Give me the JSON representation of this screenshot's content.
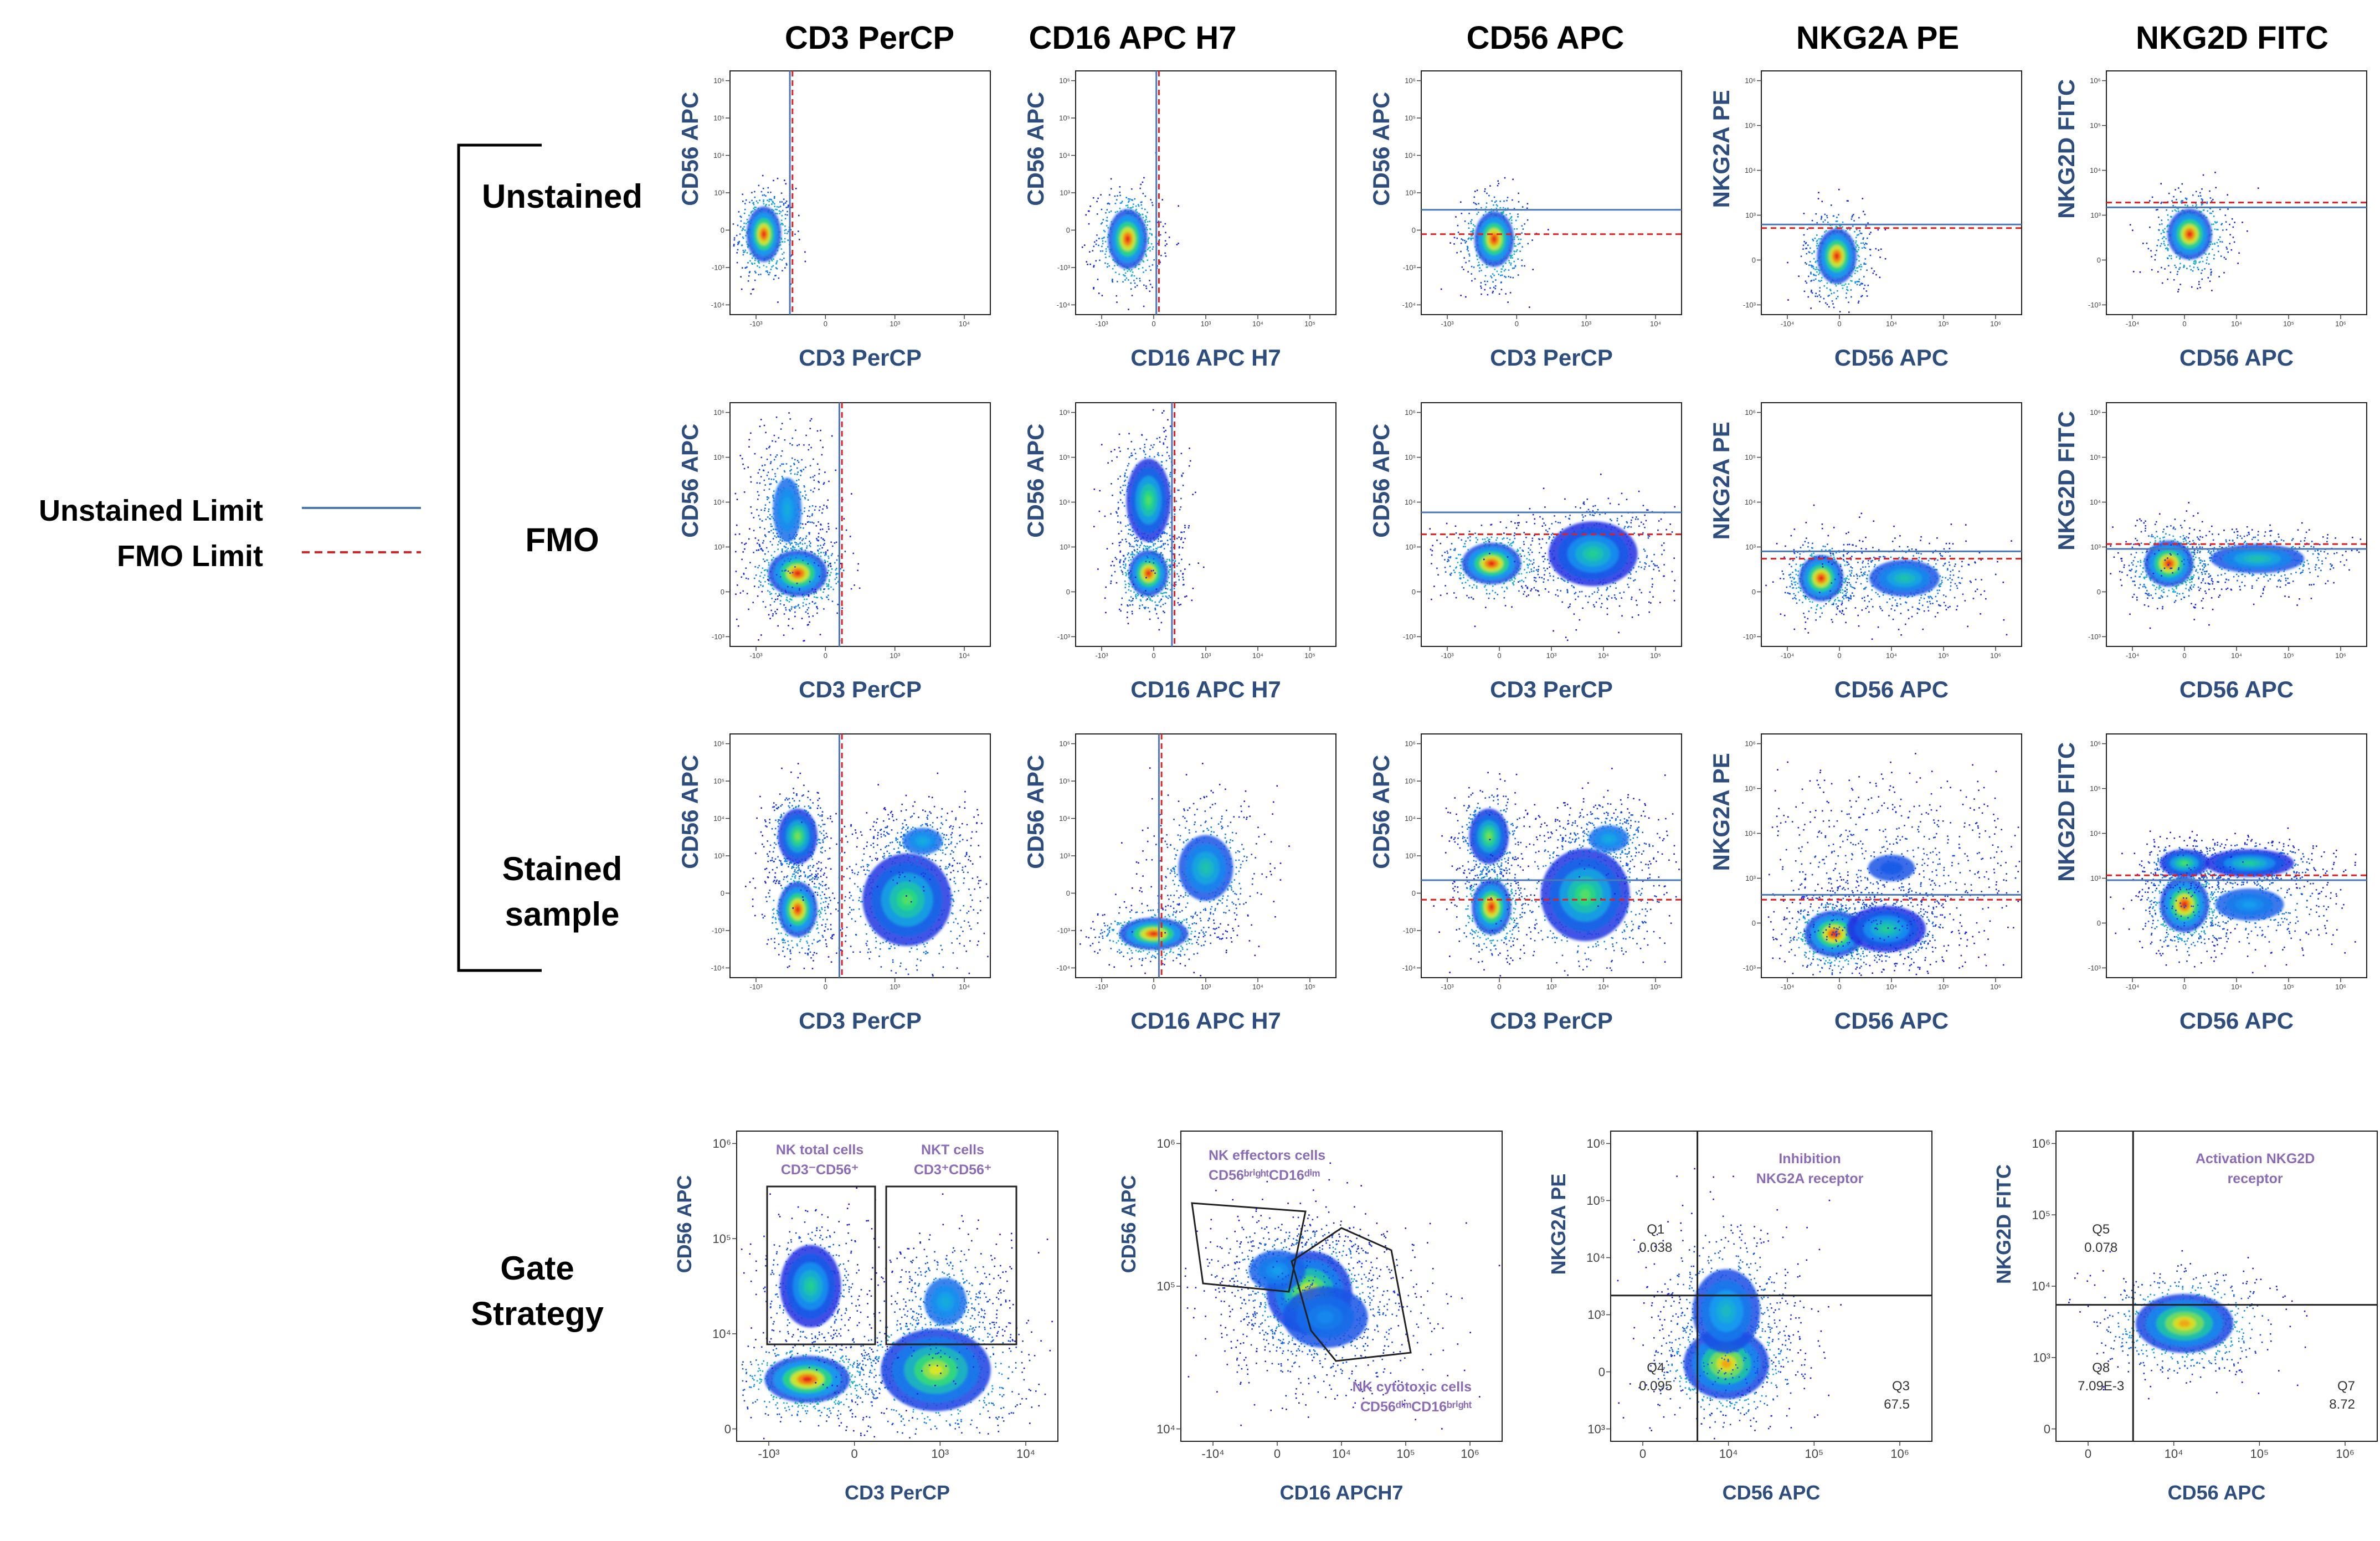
{
  "column_titles": [
    "CD3 PerCP",
    "CD16 APC H7",
    "CD56 APC",
    "NKG2A PE",
    "NKG2D FITC"
  ],
  "row_labels": [
    [
      "Unstained"
    ],
    [
      "FMO"
    ],
    [
      "Stained",
      "sample"
    ]
  ],
  "gate_label": [
    "Gate",
    "Strategy"
  ],
  "legend": {
    "unstained_label": "Unstained Limit",
    "fmo_label": "FMO Limit",
    "unstained_color": "#4a78b8",
    "fmo_color": "#e02020"
  },
  "colors": {
    "axis_label": "#2e4d7f",
    "gate_text": "#8a6bb5"
  },
  "chart_data": {
    "type": "scatter",
    "grid": [
      [
        {
          "xlabel": "CD3 PerCP",
          "ylabel": "CD56 APC",
          "xticks": [
            "-10³",
            "0",
            "10³",
            "10⁴"
          ],
          "yticks": [
            "10⁶",
            "10⁵",
            "10⁴",
            "10³",
            "0",
            "-10³",
            "-10⁴"
          ],
          "vline": {
            "unstained": 0.23,
            "fmo": 0.24
          },
          "hline": null,
          "clusters": [
            {
              "x": 0.13,
              "y": 0.33,
              "sx": 0.035,
              "sy": 0.06,
              "n": 500,
              "d": 1
            }
          ]
        },
        {
          "xlabel": "CD16 APC H7",
          "ylabel": "CD56 APC",
          "xticks": [
            "-10³",
            "0",
            "10³",
            "10⁴",
            "10⁵"
          ],
          "yticks": [
            "10⁶",
            "10⁵",
            "10⁴",
            "10³",
            "0",
            "-10³",
            "-10⁴"
          ],
          "vline": {
            "unstained": 0.31,
            "fmo": 0.32
          },
          "hline": null,
          "clusters": [
            {
              "x": 0.2,
              "y": 0.31,
              "sx": 0.04,
              "sy": 0.065,
              "n": 500,
              "d": 1
            }
          ]
        },
        {
          "xlabel": "CD3 PerCP",
          "ylabel": "CD56 APC",
          "xticks": [
            "-10³",
            "0",
            "10³",
            "10⁴"
          ],
          "yticks": [
            "10⁶",
            "10⁵",
            "10⁴",
            "10³",
            "0",
            "-10³",
            "-10⁴"
          ],
          "vline": null,
          "hline": {
            "unstained": 0.43,
            "fmo": 0.33
          },
          "clusters": [
            {
              "x": 0.28,
              "y": 0.31,
              "sx": 0.04,
              "sy": 0.06,
              "n": 500,
              "d": 1
            }
          ]
        },
        {
          "xlabel": "CD56 APC",
          "ylabel": "NKG2A PE",
          "xticks": [
            "-10⁴",
            "0",
            "10⁴",
            "10⁵",
            "10⁶"
          ],
          "yticks": [
            "10⁶",
            "10⁵",
            "10⁴",
            "10³",
            "0",
            "-10³"
          ],
          "vline": null,
          "hline": {
            "unstained": 0.37,
            "fmo": 0.355
          },
          "clusters": [
            {
              "x": 0.29,
              "y": 0.24,
              "sx": 0.04,
              "sy": 0.06,
              "n": 550,
              "d": 1
            }
          ]
        },
        {
          "xlabel": "CD56 APC",
          "ylabel": "NKG2D FITC",
          "xticks": [
            "-10⁴",
            "0",
            "10⁴",
            "10⁵",
            "10⁶"
          ],
          "yticks": [
            "10⁶",
            "10⁵",
            "10⁴",
            "10³",
            "0",
            "-10³"
          ],
          "vline": null,
          "hline": {
            "unstained": 0.44,
            "fmo": 0.46
          },
          "clusters": [
            {
              "x": 0.32,
              "y": 0.33,
              "sx": 0.045,
              "sy": 0.055,
              "n": 550,
              "d": 1
            }
          ]
        }
      ],
      [
        {
          "xlabel": "CD3 PerCP",
          "ylabel": "CD56 APC",
          "xticks": [
            "-10³",
            "0",
            "10³",
            "10⁴"
          ],
          "yticks": [
            "10⁶",
            "10⁵",
            "10⁴",
            "10³",
            "0",
            "-10³"
          ],
          "vline": {
            "unstained": 0.42,
            "fmo": 0.43
          },
          "hline": null,
          "clusters": [
            {
              "x": 0.26,
              "y": 0.3,
              "sx": 0.06,
              "sy": 0.05,
              "n": 600,
              "d": 1
            },
            {
              "x": 0.22,
              "y": 0.56,
              "sx": 0.05,
              "sy": 0.12,
              "n": 500,
              "d": 0.35
            }
          ]
        },
        {
          "xlabel": "CD16 APC H7",
          "ylabel": "CD56 APC",
          "xticks": [
            "-10³",
            "0",
            "10³",
            "10⁴",
            "10⁵"
          ],
          "yticks": [
            "10⁶",
            "10⁵",
            "10⁴",
            "10³",
            "0",
            "-10³"
          ],
          "vline": {
            "unstained": 0.37,
            "fmo": 0.38
          },
          "hline": null,
          "clusters": [
            {
              "x": 0.28,
              "y": 0.3,
              "sx": 0.04,
              "sy": 0.05,
              "n": 500,
              "d": 1
            },
            {
              "x": 0.28,
              "y": 0.6,
              "sx": 0.045,
              "sy": 0.09,
              "n": 500,
              "d": 0.6
            }
          ]
        },
        {
          "xlabel": "CD3 PerCP",
          "ylabel": "CD56 APC",
          "xticks": [
            "-10³",
            "0",
            "10³",
            "10⁴",
            "10⁵"
          ],
          "yticks": [
            "10⁶",
            "10⁵",
            "10⁴",
            "10³",
            "0",
            "-10³"
          ],
          "vline": null,
          "hline": {
            "unstained": 0.55,
            "fmo": 0.46
          },
          "clusters": [
            {
              "x": 0.27,
              "y": 0.34,
              "sx": 0.06,
              "sy": 0.045,
              "n": 500,
              "d": 1
            },
            {
              "x": 0.66,
              "y": 0.38,
              "sx": 0.09,
              "sy": 0.07,
              "n": 600,
              "d": 0.5
            }
          ]
        },
        {
          "xlabel": "CD56 APC",
          "ylabel": "NKG2A PE",
          "xticks": [
            "-10⁴",
            "0",
            "10⁴",
            "10⁵",
            "10⁶"
          ],
          "yticks": [
            "10⁶",
            "10⁵",
            "10⁴",
            "10³",
            "0",
            "-10³"
          ],
          "vline": null,
          "hline": {
            "unstained": 0.39,
            "fmo": 0.36
          },
          "clusters": [
            {
              "x": 0.23,
              "y": 0.28,
              "sx": 0.045,
              "sy": 0.05,
              "n": 500,
              "d": 1
            },
            {
              "x": 0.55,
              "y": 0.28,
              "sx": 0.09,
              "sy": 0.05,
              "n": 500,
              "d": 0.45
            }
          ]
        },
        {
          "xlabel": "CD56 APC",
          "ylabel": "NKG2D FITC",
          "xticks": [
            "-10⁴",
            "0",
            "10⁴",
            "10⁵",
            "10⁶"
          ],
          "yticks": [
            "10⁶",
            "10⁵",
            "10⁴",
            "10³",
            "0",
            "-10³"
          ],
          "vline": null,
          "hline": {
            "unstained": 0.4,
            "fmo": 0.42
          },
          "clusters": [
            {
              "x": 0.24,
              "y": 0.34,
              "sx": 0.05,
              "sy": 0.05,
              "n": 600,
              "d": 1
            },
            {
              "x": 0.58,
              "y": 0.36,
              "sx": 0.12,
              "sy": 0.04,
              "n": 500,
              "d": 0.45
            }
          ]
        }
      ],
      [
        {
          "xlabel": "CD3 PerCP",
          "ylabel": "CD56 APC",
          "xticks": [
            "-10³",
            "0",
            "10³",
            "10⁴"
          ],
          "yticks": [
            "10⁶",
            "10⁵",
            "10⁴",
            "10³",
            "0",
            "-10³",
            "-10⁴"
          ],
          "vline": {
            "unstained": 0.42,
            "fmo": 0.43
          },
          "hline": null,
          "clusters": [
            {
              "x": 0.26,
              "y": 0.28,
              "sx": 0.04,
              "sy": 0.06,
              "n": 500,
              "d": 1
            },
            {
              "x": 0.26,
              "y": 0.58,
              "sx": 0.04,
              "sy": 0.06,
              "n": 400,
              "d": 0.65
            },
            {
              "x": 0.68,
              "y": 0.32,
              "sx": 0.09,
              "sy": 0.1,
              "n": 700,
              "d": 0.6
            },
            {
              "x": 0.74,
              "y": 0.56,
              "sx": 0.07,
              "sy": 0.05,
              "n": 300,
              "d": 0.35
            }
          ]
        },
        {
          "xlabel": "CD16 APC H7",
          "ylabel": "CD56 APC",
          "xticks": [
            "-10³",
            "0",
            "10³",
            "10⁴",
            "10⁵"
          ],
          "yticks": [
            "10⁶",
            "10⁵",
            "10⁴",
            "10³",
            "0",
            "-10³",
            "-10⁴"
          ],
          "vline": {
            "unstained": 0.32,
            "fmo": 0.33
          },
          "hline": null,
          "clusters": [
            {
              "x": 0.3,
              "y": 0.18,
              "sx": 0.07,
              "sy": 0.035,
              "n": 500,
              "d": 1
            },
            {
              "x": 0.5,
              "y": 0.45,
              "sx": 0.07,
              "sy": 0.09,
              "n": 450,
              "d": 0.45
            }
          ]
        },
        {
          "xlabel": "CD3 PerCP",
          "ylabel": "CD56 APC",
          "xticks": [
            "-10³",
            "0",
            "10³",
            "10⁴",
            "10⁵"
          ],
          "yticks": [
            "10⁶",
            "10⁵",
            "10⁴",
            "10³",
            "0",
            "-10³",
            "-10⁴"
          ],
          "vline": null,
          "hline": {
            "unstained": 0.4,
            "fmo": 0.32
          },
          "clusters": [
            {
              "x": 0.27,
              "y": 0.29,
              "sx": 0.04,
              "sy": 0.06,
              "n": 500,
              "d": 1
            },
            {
              "x": 0.26,
              "y": 0.58,
              "sx": 0.04,
              "sy": 0.06,
              "n": 400,
              "d": 0.65
            },
            {
              "x": 0.63,
              "y": 0.34,
              "sx": 0.09,
              "sy": 0.1,
              "n": 700,
              "d": 0.6
            },
            {
              "x": 0.72,
              "y": 0.57,
              "sx": 0.07,
              "sy": 0.05,
              "n": 300,
              "d": 0.35
            }
          ]
        },
        {
          "xlabel": "CD56 APC",
          "ylabel": "NKG2A PE",
          "xticks": [
            "-10⁴",
            "0",
            "10⁴",
            "10⁵",
            "10⁶"
          ],
          "yticks": [
            "10⁶",
            "10⁵",
            "10⁴",
            "10³",
            "0",
            "-10³"
          ],
          "vline": null,
          "hline": {
            "unstained": 0.34,
            "fmo": 0.32
          },
          "clusters": [
            {
              "x": 0.28,
              "y": 0.18,
              "sx": 0.06,
              "sy": 0.05,
              "n": 600,
              "d": 1
            },
            {
              "x": 0.48,
              "y": 0.2,
              "sx": 0.08,
              "sy": 0.05,
              "n": 500,
              "d": 0.5
            },
            {
              "x": 0.5,
              "y": 0.45,
              "sx": 0.2,
              "sy": 0.12,
              "n": 800,
              "d": 0.15
            }
          ]
        },
        {
          "xlabel": "CD56 APC",
          "ylabel": "NKG2D FITC",
          "xticks": [
            "-10⁴",
            "0",
            "10⁴",
            "10⁵",
            "10⁶"
          ],
          "yticks": [
            "10⁶",
            "10⁵",
            "10⁴",
            "10³",
            "0",
            "-10³"
          ],
          "vline": null,
          "hline": {
            "unstained": 0.4,
            "fmo": 0.42
          },
          "clusters": [
            {
              "x": 0.3,
              "y": 0.3,
              "sx": 0.05,
              "sy": 0.06,
              "n": 600,
              "d": 1
            },
            {
              "x": 0.3,
              "y": 0.47,
              "sx": 0.05,
              "sy": 0.03,
              "n": 300,
              "d": 0.6
            },
            {
              "x": 0.55,
              "y": 0.47,
              "sx": 0.09,
              "sy": 0.03,
              "n": 400,
              "d": 0.5
            },
            {
              "x": 0.55,
              "y": 0.3,
              "sx": 0.12,
              "sy": 0.06,
              "n": 400,
              "d": 0.3
            }
          ]
        }
      ]
    ],
    "gate_strategy": [
      {
        "xlabel": "CD3 PerCP",
        "ylabel": "CD56 APC",
        "xticks": [
          "-10³",
          "0",
          "10³",
          "10⁴"
        ],
        "yticks": [
          "10⁶",
          "10⁵",
          "10⁴",
          "0"
        ],
        "gates": [
          {
            "name": "NK total cells",
            "sub": "CD3⁻CD56⁺"
          },
          {
            "name": "NKT cells",
            "sub": "CD3⁺CD56⁺"
          }
        ],
        "clusters": [
          {
            "x": 0.22,
            "y": 0.2,
            "sx": 0.07,
            "sy": 0.04,
            "n": 700,
            "d": 1
          },
          {
            "x": 0.23,
            "y": 0.5,
            "sx": 0.05,
            "sy": 0.07,
            "n": 500,
            "d": 0.5
          },
          {
            "x": 0.62,
            "y": 0.23,
            "sx": 0.09,
            "sy": 0.07,
            "n": 800,
            "d": 0.75
          },
          {
            "x": 0.65,
            "y": 0.45,
            "sx": 0.06,
            "sy": 0.07,
            "n": 400,
            "d": 0.35
          }
        ]
      },
      {
        "xlabel": "CD16 APCH7",
        "ylabel": "CD56 APC",
        "xticks": [
          "-10⁴",
          "0",
          "10⁴",
          "10⁵",
          "10⁶"
        ],
        "yticks": [
          "10⁶",
          "10⁵",
          "10⁴"
        ],
        "gates": [
          {
            "name": "NK effectors cells",
            "sub": "CD56ᵇʳⁱᵍʰᵗCD16ᵈⁱᵐ"
          },
          {
            "name": "NK cytotoxic cells",
            "sub": "CD56ᵈⁱᵐCD16ᵇʳⁱᵍʰᵗ"
          }
        ],
        "clusters": [
          {
            "x": 0.4,
            "y": 0.48,
            "sx": 0.07,
            "sy": 0.07,
            "n": 800,
            "d": 0.8
          },
          {
            "x": 0.3,
            "y": 0.55,
            "sx": 0.08,
            "sy": 0.06,
            "n": 300,
            "d": 0.3
          },
          {
            "x": 0.45,
            "y": 0.4,
            "sx": 0.12,
            "sy": 0.09,
            "n": 500,
            "d": 0.25
          }
        ]
      },
      {
        "xlabel": "CD56 APC",
        "ylabel": "NKG2A PE",
        "xticks": [
          "0",
          "10⁴",
          "10⁵",
          "10⁶"
        ],
        "yticks": [
          "10⁶",
          "10⁵",
          "10⁴",
          "10³",
          "0",
          "10³"
        ],
        "quadrants": [
          {
            "id": "Q1",
            "value": "0.038"
          },
          {
            "id": "Q4",
            "value": "0.095"
          },
          {
            "id": "Q3",
            "value": "67.5"
          }
        ],
        "title": [
          "Inhibition",
          "NKG2A receptor"
        ],
        "clusters": [
          {
            "x": 0.36,
            "y": 0.25,
            "sx": 0.07,
            "sy": 0.06,
            "n": 700,
            "d": 0.85
          },
          {
            "x": 0.36,
            "y": 0.42,
            "sx": 0.07,
            "sy": 0.09,
            "n": 600,
            "d": 0.4
          }
        ]
      },
      {
        "xlabel": "CD56 APC",
        "ylabel": "NKG2D FITC",
        "xticks": [
          "0",
          "10⁴",
          "10⁵",
          "10⁶"
        ],
        "yticks": [
          "10⁶",
          "10⁵",
          "10⁴",
          "10³",
          "0"
        ],
        "quadrants": [
          {
            "id": "Q5",
            "value": "0.078"
          },
          {
            "id": "Q8",
            "value": "7.09E-3"
          },
          {
            "id": "Q7",
            "value": "8.72"
          }
        ],
        "title": [
          "Activation NKG2D",
          "receptor"
        ],
        "clusters": [
          {
            "x": 0.4,
            "y": 0.38,
            "sx": 0.08,
            "sy": 0.05,
            "n": 800,
            "d": 0.85
          }
        ]
      }
    ]
  }
}
